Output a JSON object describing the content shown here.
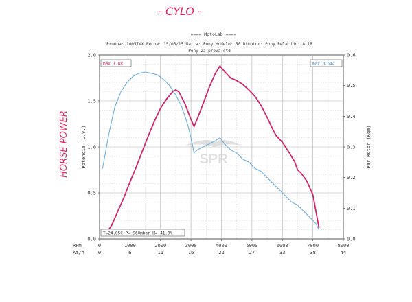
{
  "handwriting": {
    "top_title": "- CYLO -",
    "left_label": "HORSE POWER",
    "color": "#e0245e"
  },
  "header": {
    "title": "==== MotoLab ====",
    "line1": "Prueba: 10057XX   Fecha: 15/06/15   Marca: Pony   Modelo: 50   Nºmotor: Pony   Relación: 8.18",
    "line2": "Pony 2a prova std"
  },
  "boxes": {
    "max_power": "máx  1.88",
    "max_torque": "máx  0.544",
    "conditions": "T=24.05C  P=  960mbar  H=  41.0%"
  },
  "watermark": "SPR",
  "chart_data": {
    "type": "line",
    "xlabel": "RPM",
    "x2label": "Km/h",
    "ylabel_left": "Potencia (C.V.)",
    "ylabel_right": "Par Motor (Kgm)",
    "xlim": [
      0,
      8000
    ],
    "ylim_left": [
      0,
      2.0
    ],
    "ylim_right": [
      0,
      0.6
    ],
    "x_ticks": [
      "0",
      "1000",
      "2000",
      "3000",
      "4000",
      "5000",
      "6000",
      "7000",
      "8000"
    ],
    "kmh_ticks": [
      "0",
      "6",
      "11",
      "16",
      "22",
      "27",
      "33",
      "38",
      "44"
    ],
    "y_left_ticks": [
      "0.0",
      "0.5",
      "1.0",
      "1.5",
      "2.0"
    ],
    "y_right_ticks": [
      "0.0",
      "0.1",
      "0.2",
      "0.3",
      "0.4",
      "0.5",
      "0.6"
    ],
    "grid": true,
    "series": [
      {
        "name": "Potencia",
        "axis": "left",
        "color": "#d0246b",
        "x": [
          200,
          400,
          600,
          800,
          1000,
          1200,
          1400,
          1600,
          1800,
          2000,
          2200,
          2400,
          2500,
          2600,
          2800,
          3000,
          3100,
          3200,
          3400,
          3600,
          3800,
          3950,
          4100,
          4300,
          4500,
          4700,
          4900,
          5100,
          5300,
          5500,
          5700,
          5800,
          6000,
          6200,
          6400,
          6500,
          6600,
          6800,
          7000,
          7100,
          7200
        ],
        "y": [
          0.05,
          0.15,
          0.3,
          0.45,
          0.62,
          0.78,
          0.95,
          1.12,
          1.28,
          1.42,
          1.52,
          1.6,
          1.62,
          1.6,
          1.47,
          1.3,
          1.22,
          1.3,
          1.47,
          1.65,
          1.8,
          1.88,
          1.82,
          1.75,
          1.72,
          1.68,
          1.62,
          1.55,
          1.45,
          1.32,
          1.18,
          1.12,
          1.05,
          0.95,
          0.84,
          0.75,
          0.72,
          0.63,
          0.48,
          0.3,
          0.12
        ]
      },
      {
        "name": "Par Motor",
        "axis": "right",
        "color": "#6aaedc",
        "x": [
          100,
          300,
          500,
          700,
          900,
          1100,
          1300,
          1500,
          1700,
          1900,
          2100,
          2300,
          2500,
          2700,
          2900,
          3000,
          3100,
          3200,
          3400,
          3600,
          3800,
          3950,
          4100,
          4300,
          4500,
          4700,
          4900,
          5100,
          5300,
          5500,
          5700,
          5900,
          6100,
          6300,
          6500,
          6700,
          6900,
          7100,
          7200
        ],
        "y": [
          0.23,
          0.34,
          0.43,
          0.48,
          0.51,
          0.53,
          0.54,
          0.544,
          0.54,
          0.535,
          0.52,
          0.5,
          0.47,
          0.43,
          0.37,
          0.33,
          0.28,
          0.29,
          0.3,
          0.31,
          0.32,
          0.33,
          0.31,
          0.29,
          0.28,
          0.26,
          0.25,
          0.23,
          0.22,
          0.2,
          0.18,
          0.16,
          0.14,
          0.12,
          0.11,
          0.09,
          0.07,
          0.05,
          0.03
        ]
      }
    ]
  }
}
